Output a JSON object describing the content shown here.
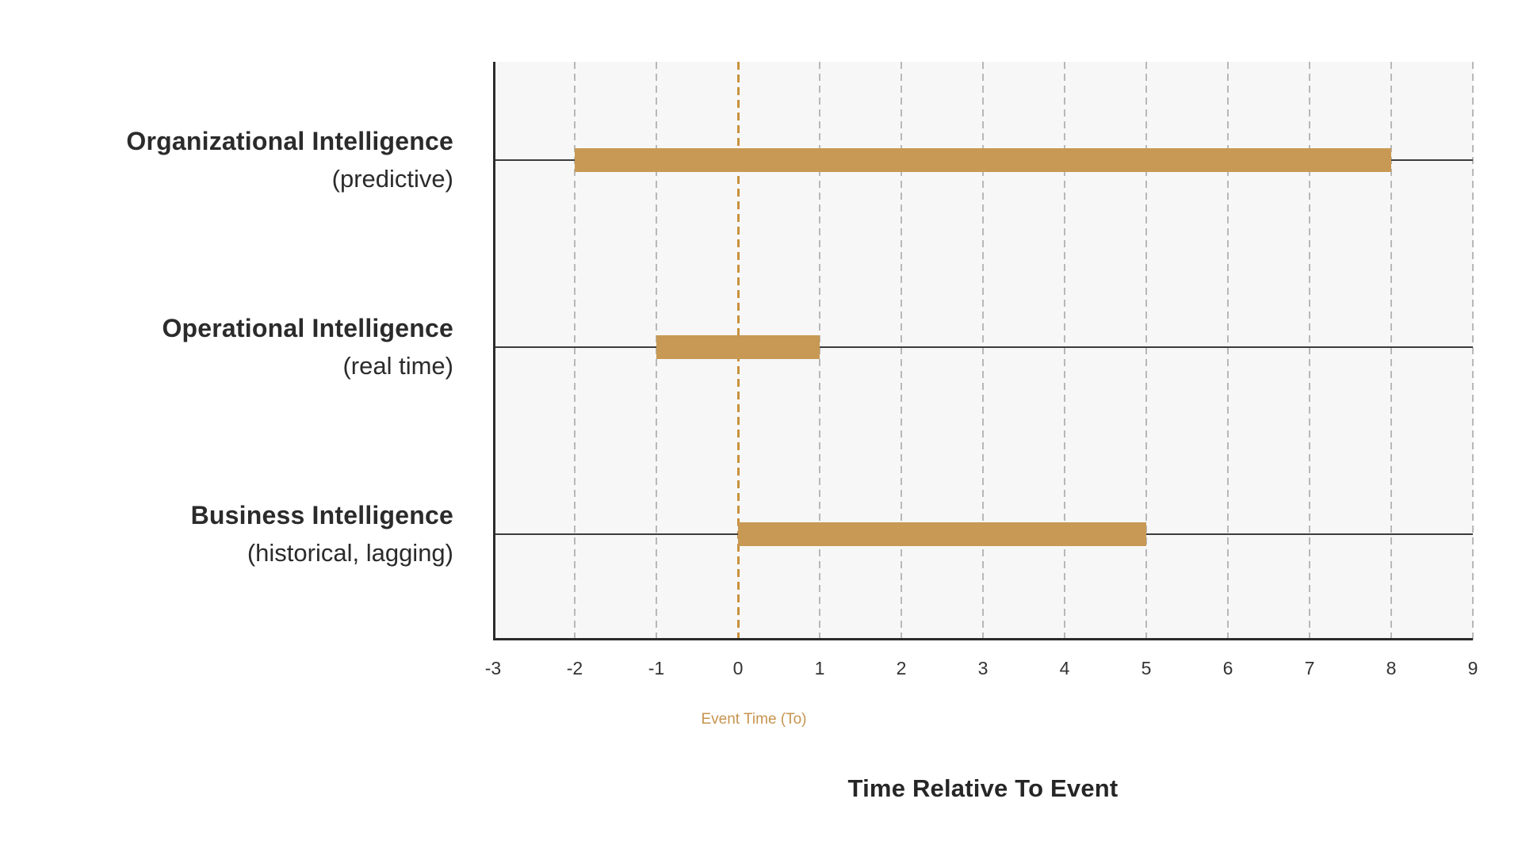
{
  "chart_data": {
    "type": "bar",
    "orientation": "horizontal",
    "title": "Time Relative To Event",
    "annotation": "Event Time (To)",
    "xlim": [
      -3,
      9
    ],
    "x_ticks": [
      "-3",
      "-2",
      "-1",
      "0",
      "1",
      "2",
      "3",
      "4",
      "5",
      "6",
      "7",
      "8",
      "9"
    ],
    "event_line_x": 0,
    "grid": true,
    "legend": false,
    "rows": [
      {
        "label": "Organizational Intelligence",
        "sublabel": "(predictive)",
        "start": -2,
        "end": 8
      },
      {
        "label": "Operational Intelligence",
        "sublabel": "(real time)",
        "start": -1,
        "end": 1
      },
      {
        "label": "Business Intelligence",
        "sublabel": "(historical, lagging)",
        "start": 0,
        "end": 5
      }
    ],
    "colors": {
      "bar": "#c89954",
      "event_line": "#c9913e",
      "annotation_text": "#c6944f",
      "grid_line": "#b8b8b8",
      "row_line": "#3c3c3c",
      "axis_spine": "#2b2b2b",
      "plot_background": "#f7f7f7",
      "text": "#2b2b2b"
    }
  }
}
